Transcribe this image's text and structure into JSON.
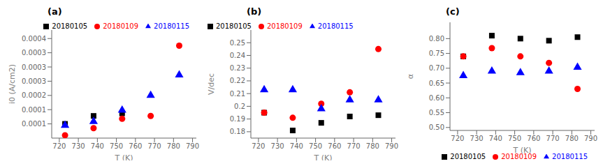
{
  "chart_data": [
    {
      "type": "scatter",
      "title": "(a)",
      "x_label": "T (K)",
      "y_label": "i0 (A/cm2)",
      "x": [
        723,
        738,
        753,
        768,
        783
      ],
      "xlim": [
        716,
        792
      ],
      "xticks": [
        720,
        730,
        740,
        750,
        760,
        770,
        780,
        790
      ],
      "ylim": [
        5e-05,
        0.00043
      ],
      "yticks": [
        0.0001,
        {
          "value": 0.00015,
          "label": "0.0001"
        },
        0.0002,
        {
          "value": 0.00025,
          "label": "0.0003"
        },
        0.0003,
        {
          "value": 0.00035,
          "label": "0.0003"
        },
        0.0004
      ],
      "legend": "upper right",
      "series": [
        {
          "name": "20180105",
          "color": "black",
          "marker": "s",
          "values": [
            0.0001,
            0.000128,
            0.000137,
            null,
            null
          ]
        },
        {
          "name": "20180109",
          "color": "red",
          "marker": "o",
          "values": [
            6e-05,
            8.5e-05,
            0.000118,
            0.000128,
            0.000375
          ]
        },
        {
          "name": "20180115",
          "color": "blue",
          "marker": "^",
          "values": [
            9.5e-05,
            0.000108,
            0.000148,
            0.0002,
            0.000272
          ]
        }
      ]
    },
    {
      "type": "scatter",
      "title": "(b)",
      "x_label": "T (K)",
      "y_label": "V/dec",
      "x": [
        723,
        738,
        753,
        768,
        783
      ],
      "xlim": [
        716,
        792
      ],
      "xticks": [
        720,
        730,
        740,
        750,
        760,
        770,
        780,
        790
      ],
      "ylim": [
        0.175,
        0.26
      ],
      "yticks": [
        0.18,
        0.19,
        0.2,
        0.21,
        0.22,
        0.23,
        0.24,
        0.25
      ],
      "legend": "upper left",
      "series": [
        {
          "name": "20180105",
          "color": "black",
          "marker": "s",
          "values": [
            0.195,
            0.181,
            0.187,
            0.192,
            0.193
          ]
        },
        {
          "name": "20180109",
          "color": "red",
          "marker": "o",
          "values": [
            0.195,
            0.191,
            0.202,
            0.211,
            0.245
          ]
        },
        {
          "name": "20180115",
          "color": "blue",
          "marker": "^",
          "values": [
            0.213,
            0.213,
            0.198,
            0.205,
            0.205
          ]
        }
      ]
    },
    {
      "type": "scatter",
      "title": "(c)",
      "x_label": "T (K)",
      "y_label": "α",
      "x": [
        723,
        738,
        753,
        768,
        783
      ],
      "xlim": [
        716,
        792
      ],
      "xticks": [
        720,
        730,
        740,
        750,
        760,
        770,
        780,
        790
      ],
      "ylim": [
        0.49,
        0.855
      ],
      "yticks": [
        {
          "value": 0.5,
          "label": "0.50"
        },
        0.55,
        {
          "value": 0.6,
          "label": "0.60"
        },
        0.65,
        {
          "value": 0.7,
          "label": "0.70"
        },
        0.75,
        {
          "value": 0.8,
          "label": "0.80"
        }
      ],
      "legend": "lower right",
      "series": [
        {
          "name": "20180105",
          "color": "black",
          "marker": "s",
          "values": [
            0.74,
            0.81,
            0.8,
            0.793,
            0.805
          ]
        },
        {
          "name": "20180109",
          "color": "red",
          "marker": "o",
          "values": [
            0.74,
            0.768,
            0.74,
            0.718,
            0.63
          ]
        },
        {
          "name": "20180115",
          "color": "blue",
          "marker": "^",
          "values": [
            0.675,
            0.69,
            0.685,
            0.69,
            0.703
          ]
        }
      ]
    }
  ]
}
